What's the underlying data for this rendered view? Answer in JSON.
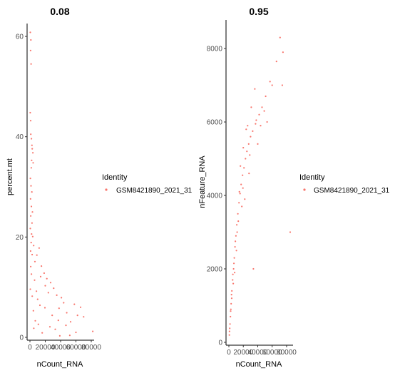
{
  "chart_data": [
    {
      "type": "scatter",
      "title": "0.08",
      "xlabel": "nCount_RNA",
      "ylabel": "percent.mt",
      "xlim": [
        0,
        80000
      ],
      "ylim": [
        0,
        62
      ],
      "xticks": [
        0,
        20000,
        40000,
        60000,
        80000
      ],
      "xtick_labels": [
        "0",
        "20000",
        "40000",
        "60000",
        "80000"
      ],
      "yticks": [
        0,
        20,
        40,
        60
      ],
      "ytick_labels": [
        "0",
        "20",
        "40",
        "60"
      ],
      "color": "#f8766d",
      "legend": {
        "title": "Identity",
        "placement": "right",
        "items": [
          "GSM8421890_2021_31"
        ]
      },
      "series": [
        {
          "name": "GSM8421890_2021_31",
          "points": [
            [
              500,
              60.8
            ],
            [
              1200,
              59.3
            ],
            [
              800,
              57.2
            ],
            [
              1500,
              54.5
            ],
            [
              400,
              44.8
            ],
            [
              900,
              43.2
            ],
            [
              1100,
              40.5
            ],
            [
              2000,
              39.6
            ],
            [
              2600,
              38.3
            ],
            [
              3000,
              37.6
            ],
            [
              3800,
              36.8
            ],
            [
              2200,
              35.3
            ],
            [
              4200,
              34.8
            ],
            [
              1800,
              33.8
            ],
            [
              600,
              31.7
            ],
            [
              1400,
              30.2
            ],
            [
              2500,
              29.0
            ],
            [
              700,
              27.6
            ],
            [
              1900,
              26.1
            ],
            [
              3300,
              25.0
            ],
            [
              1000,
              24.2
            ],
            [
              2700,
              22.8
            ],
            [
              500,
              21.7
            ],
            [
              2100,
              20.6
            ],
            [
              3600,
              20.1
            ],
            [
              1600,
              18.9
            ],
            [
              4800,
              18.3
            ],
            [
              800,
              17.2
            ],
            [
              2900,
              16.5
            ],
            [
              12000,
              17.8
            ],
            [
              9000,
              16.4
            ],
            [
              6500,
              15.1
            ],
            [
              15000,
              14.2
            ],
            [
              18500,
              12.8
            ],
            [
              22000,
              11.7
            ],
            [
              27000,
              10.9
            ],
            [
              31000,
              9.8
            ],
            [
              24000,
              8.9
            ],
            [
              35000,
              8.4
            ],
            [
              41000,
              7.9
            ],
            [
              44000,
              6.9
            ],
            [
              38000,
              5.8
            ],
            [
              48000,
              4.9
            ],
            [
              58000,
              6.6
            ],
            [
              66000,
              6.0
            ],
            [
              62000,
              4.4
            ],
            [
              70000,
              4.1
            ],
            [
              82000,
              1.2
            ],
            [
              53000,
              3.1
            ],
            [
              26000,
              2.1
            ],
            [
              33000,
              1.6
            ],
            [
              47000,
              2.4
            ],
            [
              16000,
              0.9
            ],
            [
              11000,
              2.6
            ],
            [
              7000,
              3.3
            ],
            [
              5000,
              1.8
            ],
            [
              19500,
              5.9
            ],
            [
              13000,
              6.4
            ],
            [
              29000,
              4.4
            ],
            [
              37000,
              3.4
            ],
            [
              8500,
              9.2
            ],
            [
              6000,
              11.4
            ],
            [
              14000,
              12.1
            ],
            [
              20000,
              10.3
            ],
            [
              10000,
              7.6
            ],
            [
              4500,
              5.3
            ],
            [
              3000,
              8.2
            ],
            [
              2000,
              12.6
            ],
            [
              1000,
              14.1
            ],
            [
              500,
              9.6
            ],
            [
              52000,
              0.4
            ],
            [
              60000,
              1.0
            ],
            [
              39000,
              0.3
            ]
          ]
        }
      ]
    },
    {
      "type": "scatter",
      "title": "0.95",
      "xlabel": "nCount_RNA",
      "ylabel": "nFeature_RNA",
      "xlim": [
        0,
        85000
      ],
      "ylim": [
        0,
        8700
      ],
      "xticks": [
        0,
        20000,
        40000,
        60000,
        80000
      ],
      "xtick_labels": [
        "0",
        "20000",
        "40000",
        "60000",
        "80000"
      ],
      "yticks": [
        0,
        2000,
        4000,
        6000,
        8000
      ],
      "ytick_labels": [
        "0",
        "2000",
        "4000",
        "6000",
        "8000"
      ],
      "color": "#f8766d",
      "legend": {
        "title": "Identity",
        "placement": "right",
        "items": [
          "GSM8421890_2021_31"
        ]
      },
      "series": [
        {
          "name": "GSM8421890_2021_31",
          "points": [
            [
              700,
              200
            ],
            [
              1200,
              380
            ],
            [
              2200,
              700
            ],
            [
              3200,
              1050
            ],
            [
              4200,
              1400
            ],
            [
              5200,
              1700
            ],
            [
              6500,
              2000
            ],
            [
              7500,
              2300
            ],
            [
              8500,
              2600
            ],
            [
              9800,
              2900
            ],
            [
              11000,
              3200
            ],
            [
              12500,
              3500
            ],
            [
              14000,
              3800
            ],
            [
              15500,
              4050
            ],
            [
              17000,
              4300
            ],
            [
              19000,
              4550
            ],
            [
              21000,
              4750
            ],
            [
              23000,
              5000
            ],
            [
              25000,
              5200
            ],
            [
              27500,
              5400
            ],
            [
              30000,
              5600
            ],
            [
              33000,
              5750
            ],
            [
              37000,
              5950
            ],
            [
              42000,
              6200
            ],
            [
              46000,
              6400
            ],
            [
              51000,
              6700
            ],
            [
              57000,
              7100
            ],
            [
              66000,
              7650
            ],
            [
              71000,
              8300
            ],
            [
              75000,
              7900
            ],
            [
              74000,
              7000
            ],
            [
              85000,
              3000
            ],
            [
              34000,
              2000
            ],
            [
              28000,
              4600
            ],
            [
              24000,
              5800
            ],
            [
              22000,
              3900
            ],
            [
              18000,
              3700
            ],
            [
              13000,
              3300
            ],
            [
              10500,
              2500
            ],
            [
              8000,
              1900
            ],
            [
              6000,
              1600
            ],
            [
              4000,
              1200
            ],
            [
              2800,
              900
            ],
            [
              1600,
              500
            ],
            [
              900,
              300
            ],
            [
              16000,
              4800
            ],
            [
              20000,
              5300
            ],
            [
              26000,
              5900
            ],
            [
              31000,
              6400
            ],
            [
              36000,
              6900
            ],
            [
              40000,
              5400
            ],
            [
              44000,
              5900
            ],
            [
              49000,
              6300
            ],
            [
              53000,
              6000
            ],
            [
              60000,
              7000
            ],
            [
              38000,
              6050
            ],
            [
              29000,
              5100
            ],
            [
              19500,
              4200
            ],
            [
              14500,
              4100
            ],
            [
              11500,
              3000
            ],
            [
              9000,
              2750
            ],
            [
              7000,
              2150
            ],
            [
              5500,
              1850
            ],
            [
              3700,
              1300
            ],
            [
              2500,
              850
            ]
          ]
        }
      ]
    }
  ]
}
